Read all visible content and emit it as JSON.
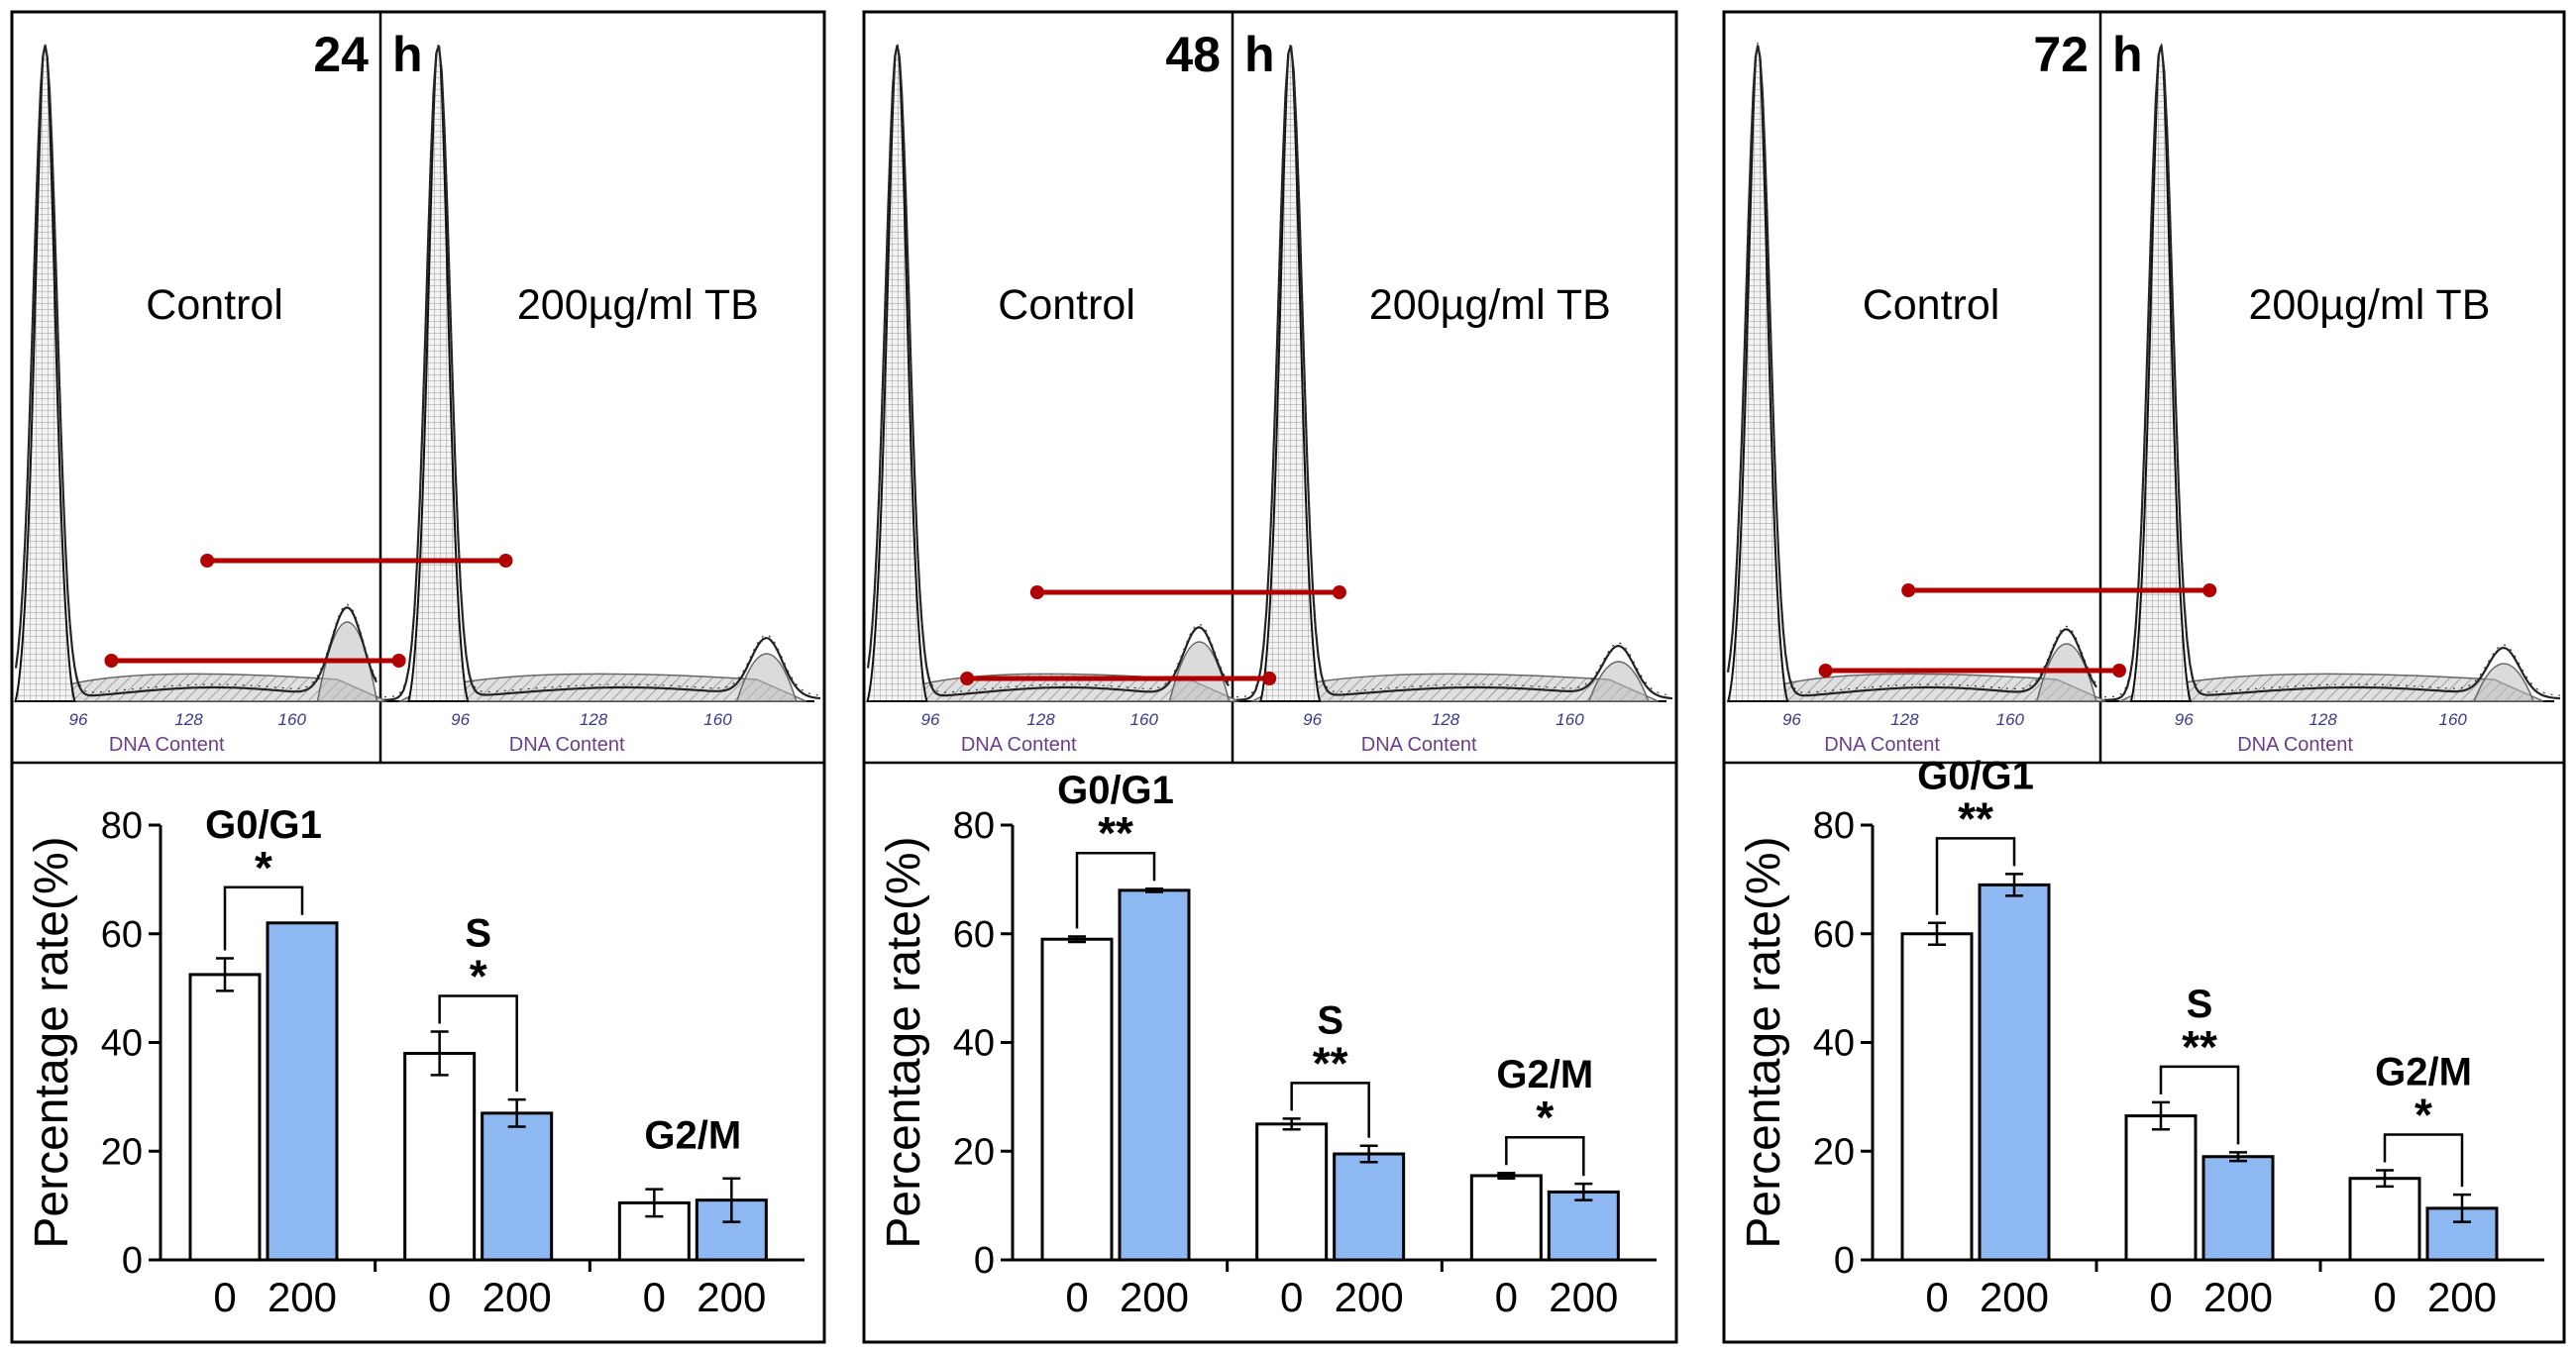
{
  "colors": {
    "control_bar": "#ffffff",
    "treatment_bar": "#8db8f2",
    "marker_line": "#b00000"
  },
  "chart_data": [
    {
      "type": "bar",
      "title": "24 h",
      "histogram": {
        "left_label": "Control",
        "right_label": "200µg/ml TB",
        "xlabel": "DNA Content",
        "left_ticks": [
          "96",
          "128",
          "160"
        ],
        "right_ticks": [
          "96",
          "128",
          "160"
        ]
      },
      "ylabel": "Percentage rate(%)",
      "ylim": [
        0,
        80
      ],
      "yticks": [
        "0",
        "20",
        "40",
        "60",
        "80"
      ],
      "categories": [
        "G0/G1",
        "S",
        "G2/M"
      ],
      "bar_labels": [
        "0",
        "200"
      ],
      "series": [
        {
          "name": "0",
          "values": [
            52.5,
            38,
            10.5
          ],
          "errors": [
            3,
            4,
            2.5
          ]
        },
        {
          "name": "200",
          "values": [
            62,
            27,
            11
          ],
          "errors": [
            0,
            2.5,
            4
          ]
        }
      ],
      "significance": [
        "*",
        "*",
        ""
      ]
    },
    {
      "type": "bar",
      "title": "48 h",
      "histogram": {
        "left_label": "Control",
        "right_label": "200µg/ml TB",
        "xlabel": "DNA Content",
        "left_ticks": [
          "96",
          "128",
          "160"
        ],
        "right_ticks": [
          "96",
          "128",
          "160"
        ]
      },
      "ylabel": "Percentage rate(%)",
      "ylim": [
        0,
        80
      ],
      "yticks": [
        "0",
        "20",
        "40",
        "60",
        "80"
      ],
      "categories": [
        "G0/G1",
        "S",
        "G2/M"
      ],
      "bar_labels": [
        "0",
        "200"
      ],
      "series": [
        {
          "name": "0",
          "values": [
            59,
            25,
            15.5
          ],
          "errors": [
            0.5,
            1,
            0.5
          ]
        },
        {
          "name": "200",
          "values": [
            68,
            19.5,
            12.5
          ],
          "errors": [
            0.3,
            1.5,
            1.5
          ]
        }
      ],
      "significance": [
        "**",
        "**",
        "*"
      ]
    },
    {
      "type": "bar",
      "title": "72 h",
      "histogram": {
        "left_label": "Control",
        "right_label": "200µg/ml TB",
        "xlabel": "DNA Content",
        "left_ticks": [
          "96",
          "128",
          "160"
        ],
        "right_ticks": [
          "96",
          "128",
          "160"
        ]
      },
      "ylabel": "Percentage rate(%)",
      "ylim": [
        0,
        80
      ],
      "yticks": [
        "0",
        "20",
        "40",
        "60",
        "80"
      ],
      "categories": [
        "G0/G1",
        "S",
        "G2/M"
      ],
      "bar_labels": [
        "0",
        "200"
      ],
      "series": [
        {
          "name": "0",
          "values": [
            60,
            26.5,
            15
          ],
          "errors": [
            2,
            2.5,
            1.5
          ]
        },
        {
          "name": "200",
          "values": [
            69,
            19,
            9.5
          ],
          "errors": [
            2,
            0.8,
            2.5
          ]
        }
      ],
      "significance": [
        "**",
        "**",
        "*"
      ]
    }
  ]
}
